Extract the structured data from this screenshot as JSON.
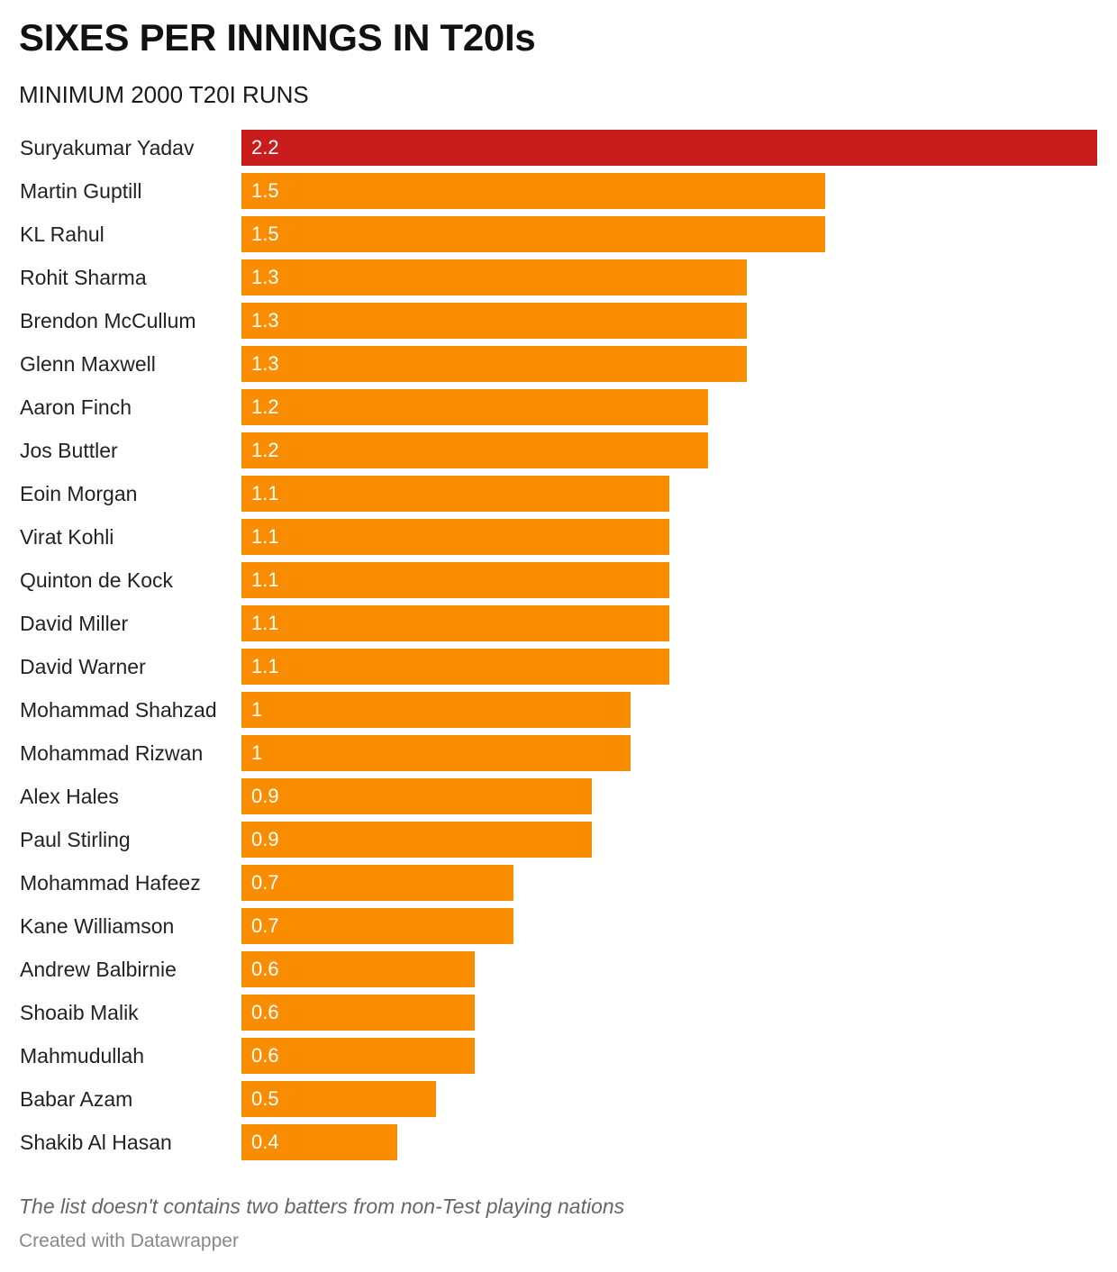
{
  "chart_data": {
    "type": "bar",
    "orientation": "horizontal",
    "title": "SIXES PER INNINGS IN T20Is",
    "subtitle": "MINIMUM 2000 T20I RUNS",
    "categories": [
      "Suryakumar Yadav",
      "Martin Guptill",
      "KL Rahul",
      "Rohit Sharma",
      "Brendon McCullum",
      "Glenn Maxwell",
      "Aaron Finch",
      "Jos Buttler",
      "Eoin Morgan",
      "Virat Kohli",
      "Quinton de Kock",
      "David Miller",
      "David Warner",
      "Mohammad Shahzad",
      "Mohammad Rizwan",
      "Alex Hales",
      "Paul Stirling",
      "Mohammad Hafeez",
      "Kane Williamson",
      "Andrew Balbirnie",
      "Shoaib Malik",
      "Mahmudullah",
      "Babar Azam",
      "Shakib Al Hasan"
    ],
    "values": [
      2.2,
      1.5,
      1.5,
      1.3,
      1.3,
      1.3,
      1.2,
      1.2,
      1.1,
      1.1,
      1.1,
      1.1,
      1.1,
      1,
      1,
      0.9,
      0.9,
      0.7,
      0.7,
      0.6,
      0.6,
      0.6,
      0.5,
      0.4
    ],
    "value_labels": [
      "2.2",
      "1.5",
      "1.5",
      "1.3",
      "1.3",
      "1.3",
      "1.2",
      "1.2",
      "1.1",
      "1.1",
      "1.1",
      "1.1",
      "1.1",
      "1",
      "1",
      "0.9",
      "0.9",
      "0.7",
      "0.7",
      "0.6",
      "0.6",
      "0.6",
      "0.5",
      "0.4"
    ],
    "xlim": [
      0,
      2.2
    ],
    "grid": false,
    "legend": "none",
    "highlight_index": 0,
    "colors": {
      "highlight": "#c91d1d",
      "default": "#fa8c00"
    }
  },
  "footer": {
    "note": "The list doesn't contains two batters from non-Test playing nations",
    "credit": "Created with Datawrapper"
  }
}
